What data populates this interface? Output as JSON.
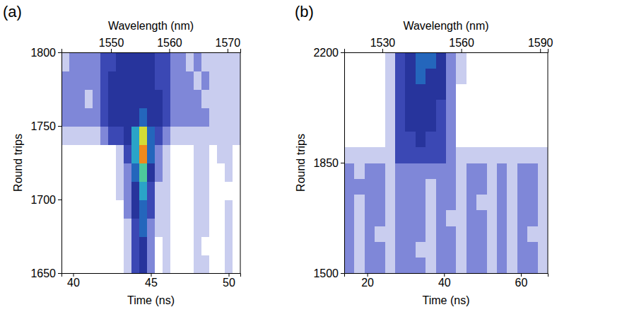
{
  "chart_data": [
    {
      "type": "heatmap",
      "panel_label": "(a)",
      "x_label": "Time (ns)",
      "x2_label": "Wavelength (nm)",
      "y_label": "Round trips",
      "xlim": [
        39.25,
        50.75
      ],
      "xticks": [
        40,
        45,
        50
      ],
      "x2lim": [
        1541.5,
        1572.2
      ],
      "x2ticks": [
        1550,
        1560,
        1570
      ],
      "ylim": [
        1650,
        1800
      ],
      "yticks": [
        1650,
        1700,
        1750,
        1800
      ],
      "zlim": [
        0,
        9
      ],
      "x_bins": [
        39.25,
        39.75,
        40.25,
        40.75,
        41.25,
        41.75,
        42.25,
        42.75,
        43.25,
        43.75,
        44.25,
        44.75,
        45.25,
        45.75,
        46.25,
        46.75,
        47.25,
        47.75,
        48.25,
        48.75,
        49.25,
        49.75,
        50.25,
        50.75
      ],
      "y_bins": [
        1650,
        1662.5,
        1675,
        1687.5,
        1700,
        1712.5,
        1725,
        1737.5,
        1750,
        1762.5,
        1775,
        1787.5,
        1800
      ],
      "z": [
        [
          0,
          0,
          0,
          0,
          0,
          0,
          0,
          0,
          1,
          3,
          4,
          2,
          0,
          1,
          0,
          0,
          0,
          1,
          1,
          0,
          0,
          1,
          0
        ],
        [
          0,
          0,
          0,
          0,
          0,
          0,
          0,
          0,
          1,
          3,
          4,
          2,
          0,
          1,
          0,
          0,
          0,
          1,
          0,
          0,
          0,
          1,
          0
        ],
        [
          0,
          0,
          0,
          0,
          0,
          0,
          0,
          0,
          1,
          3,
          5,
          2,
          1,
          1,
          0,
          0,
          0,
          1,
          1,
          0,
          0,
          1,
          0
        ],
        [
          0,
          0,
          0,
          0,
          0,
          0,
          0,
          0,
          2,
          4,
          5,
          3,
          1,
          1,
          0,
          0,
          0,
          1,
          1,
          0,
          0,
          1,
          0
        ],
        [
          0,
          0,
          0,
          0,
          0,
          0,
          0,
          1,
          2,
          4,
          6,
          3,
          1,
          1,
          0,
          0,
          0,
          1,
          1,
          0,
          0,
          0,
          0
        ],
        [
          0,
          0,
          0,
          0,
          0,
          0,
          0,
          1,
          2,
          5,
          7,
          4,
          2,
          1,
          0,
          0,
          0,
          1,
          1,
          0,
          0,
          1,
          0
        ],
        [
          0,
          0,
          0,
          0,
          0,
          0,
          0,
          1,
          3,
          6,
          9,
          5,
          2,
          1,
          0,
          0,
          0,
          1,
          1,
          0,
          1,
          1,
          0
        ],
        [
          1,
          1,
          1,
          1,
          1,
          2,
          3,
          3,
          4,
          6,
          8,
          5,
          3,
          2,
          1,
          1,
          1,
          1,
          1,
          1,
          1,
          1,
          1
        ],
        [
          2,
          2,
          2,
          2,
          2,
          3,
          4,
          4,
          4,
          4,
          5,
          4,
          4,
          3,
          2,
          2,
          2,
          2,
          2,
          1,
          1,
          1,
          1
        ],
        [
          2,
          2,
          2,
          1,
          2,
          3,
          4,
          4,
          4,
          4,
          4,
          4,
          4,
          3,
          2,
          2,
          2,
          2,
          1,
          1,
          1,
          1,
          1
        ],
        [
          2,
          2,
          2,
          2,
          2,
          3,
          4,
          4,
          4,
          4,
          4,
          4,
          3,
          3,
          2,
          2,
          2,
          1,
          2,
          1,
          1,
          1,
          1
        ],
        [
          1,
          2,
          2,
          2,
          2,
          3,
          3,
          4,
          4,
          4,
          4,
          4,
          3,
          3,
          2,
          2,
          1,
          2,
          1,
          1,
          1,
          1,
          1
        ]
      ]
    },
    {
      "type": "heatmap",
      "panel_label": "(b)",
      "x_label": "Time (ns)",
      "x2_label": "Wavelength (nm)",
      "y_label": "Round trips",
      "xlim": [
        14,
        67
      ],
      "xticks": [
        20,
        40,
        60
      ],
      "x2lim": [
        1515.5,
        1592.9
      ],
      "x2ticks": [
        1530,
        1560,
        1590
      ],
      "ylim": [
        1500,
        2200
      ],
      "yticks": [
        1500,
        1850,
        2200
      ],
      "zlim": [
        0,
        9
      ],
      "x_bins": [
        14,
        16.65,
        19.3,
        21.95,
        24.6,
        27.25,
        29.9,
        32.55,
        35.2,
        37.85,
        40.5,
        43.15,
        45.8,
        48.45,
        51.1,
        53.75,
        56.4,
        59.05,
        61.7,
        64.35,
        67
      ],
      "y_bins": [
        1500,
        1550,
        1600,
        1650,
        1700,
        1750,
        1800,
        1850,
        1900,
        1950,
        2000,
        2050,
        2100,
        2150,
        2200
      ],
      "z": [
        [
          2,
          1,
          2,
          2,
          1,
          2,
          2,
          2,
          1,
          2,
          2,
          1,
          2,
          2,
          1,
          2,
          1,
          2,
          2,
          1
        ],
        [
          2,
          1,
          2,
          2,
          1,
          2,
          2,
          1,
          1,
          2,
          2,
          1,
          2,
          2,
          1,
          2,
          1,
          2,
          2,
          1
        ],
        [
          2,
          1,
          2,
          1,
          1,
          2,
          2,
          2,
          1,
          2,
          2,
          1,
          2,
          2,
          1,
          2,
          1,
          2,
          1,
          1
        ],
        [
          2,
          1,
          2,
          2,
          1,
          2,
          2,
          2,
          1,
          2,
          1,
          1,
          2,
          2,
          1,
          2,
          1,
          2,
          2,
          1
        ],
        [
          2,
          1,
          2,
          2,
          1,
          2,
          2,
          2,
          1,
          2,
          2,
          1,
          2,
          1,
          1,
          2,
          1,
          2,
          2,
          1
        ],
        [
          2,
          2,
          2,
          2,
          1,
          2,
          2,
          2,
          1,
          2,
          2,
          1,
          2,
          2,
          1,
          2,
          1,
          2,
          2,
          1
        ],
        [
          2,
          1,
          2,
          2,
          1,
          2,
          2,
          2,
          2,
          2,
          2,
          1,
          2,
          2,
          1,
          2,
          1,
          2,
          2,
          1
        ],
        [
          1,
          1,
          1,
          1,
          1,
          3,
          3,
          3,
          3,
          3,
          2,
          1,
          1,
          1,
          1,
          1,
          1,
          1,
          1,
          1
        ],
        [
          0,
          0,
          0,
          0,
          1,
          3,
          3,
          4,
          3,
          3,
          2,
          0,
          0,
          0,
          0,
          0,
          0,
          0,
          0,
          0
        ],
        [
          0,
          0,
          0,
          0,
          1,
          3,
          4,
          4,
          4,
          3,
          2,
          0,
          0,
          0,
          0,
          0,
          0,
          0,
          0,
          0
        ],
        [
          0,
          0,
          0,
          0,
          1,
          3,
          4,
          4,
          4,
          3,
          2,
          0,
          0,
          0,
          0,
          0,
          0,
          0,
          0,
          0
        ],
        [
          0,
          0,
          0,
          0,
          1,
          3,
          4,
          4,
          4,
          4,
          2,
          0,
          0,
          0,
          0,
          0,
          0,
          0,
          0,
          0
        ],
        [
          0,
          0,
          0,
          0,
          1,
          3,
          4,
          5,
          4,
          4,
          2,
          1,
          0,
          0,
          0,
          0,
          0,
          0,
          0,
          0
        ],
        [
          0,
          0,
          0,
          0,
          1,
          3,
          4,
          5,
          5,
          4,
          2,
          1,
          0,
          0,
          0,
          0,
          0,
          0,
          0,
          0
        ]
      ]
    }
  ]
}
